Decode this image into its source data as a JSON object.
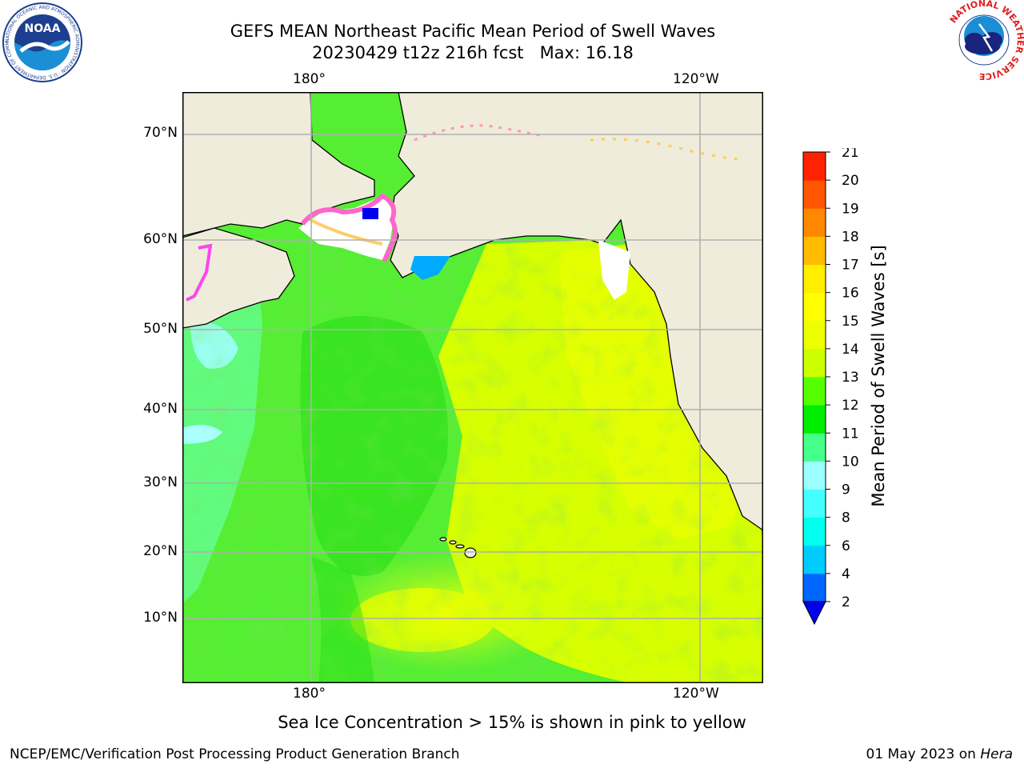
{
  "header": {
    "title": "GEFS MEAN Northeast Pacific Mean Period of Swell Waves",
    "subtitle": "20230429 t12z 216h fcst   Max: 16.18"
  },
  "logos": {
    "left": {
      "name": "NOAA",
      "text": "NOAA",
      "ring_text": "NATIONAL OCEANIC AND ATMOSPHERIC ADMINISTRATION · U.S. DEPARTMENT OF COMMERCE ·"
    },
    "right": {
      "name": "National Weather Service",
      "ring_text": "NATIONAL WEATHER SERVICE"
    }
  },
  "map": {
    "lon_labels_top": [
      "180°",
      "120°W"
    ],
    "lon_labels_bottom": [
      "180°",
      "120°W"
    ],
    "lat_labels": [
      "70°N",
      "60°N",
      "50°N",
      "40°N",
      "30°N",
      "20°N",
      "10°N"
    ],
    "land_color": "#efecdc",
    "ocean_base_color": "#55ee33",
    "grid_color": "#b0b0b0"
  },
  "colorbar": {
    "title": "Mean Period of Swell Waves [s]",
    "ticks": [
      "2",
      "4",
      "6",
      "8",
      "9",
      "10",
      "11",
      "12",
      "13",
      "14",
      "15",
      "16",
      "17",
      "18",
      "19",
      "20",
      "21"
    ],
    "colors": [
      "#0000ee",
      "#0066ff",
      "#00ccff",
      "#00ffee",
      "#44ffff",
      "#99ffff",
      "#44ff88",
      "#00ee00",
      "#55ff00",
      "#ccff00",
      "#eeff00",
      "#ffff00",
      "#ffee00",
      "#ffbb00",
      "#ff8800",
      "#ff5500",
      "#ff2200",
      "#ff0000"
    ]
  },
  "footer": {
    "note": "Sea Ice Concentration > 15% is shown in pink to yellow",
    "credit_left": "NCEP/EMC/Verification Post Processing Product Generation Branch",
    "credit_date": "01 May 2023 on ",
    "credit_host": "Hera"
  }
}
